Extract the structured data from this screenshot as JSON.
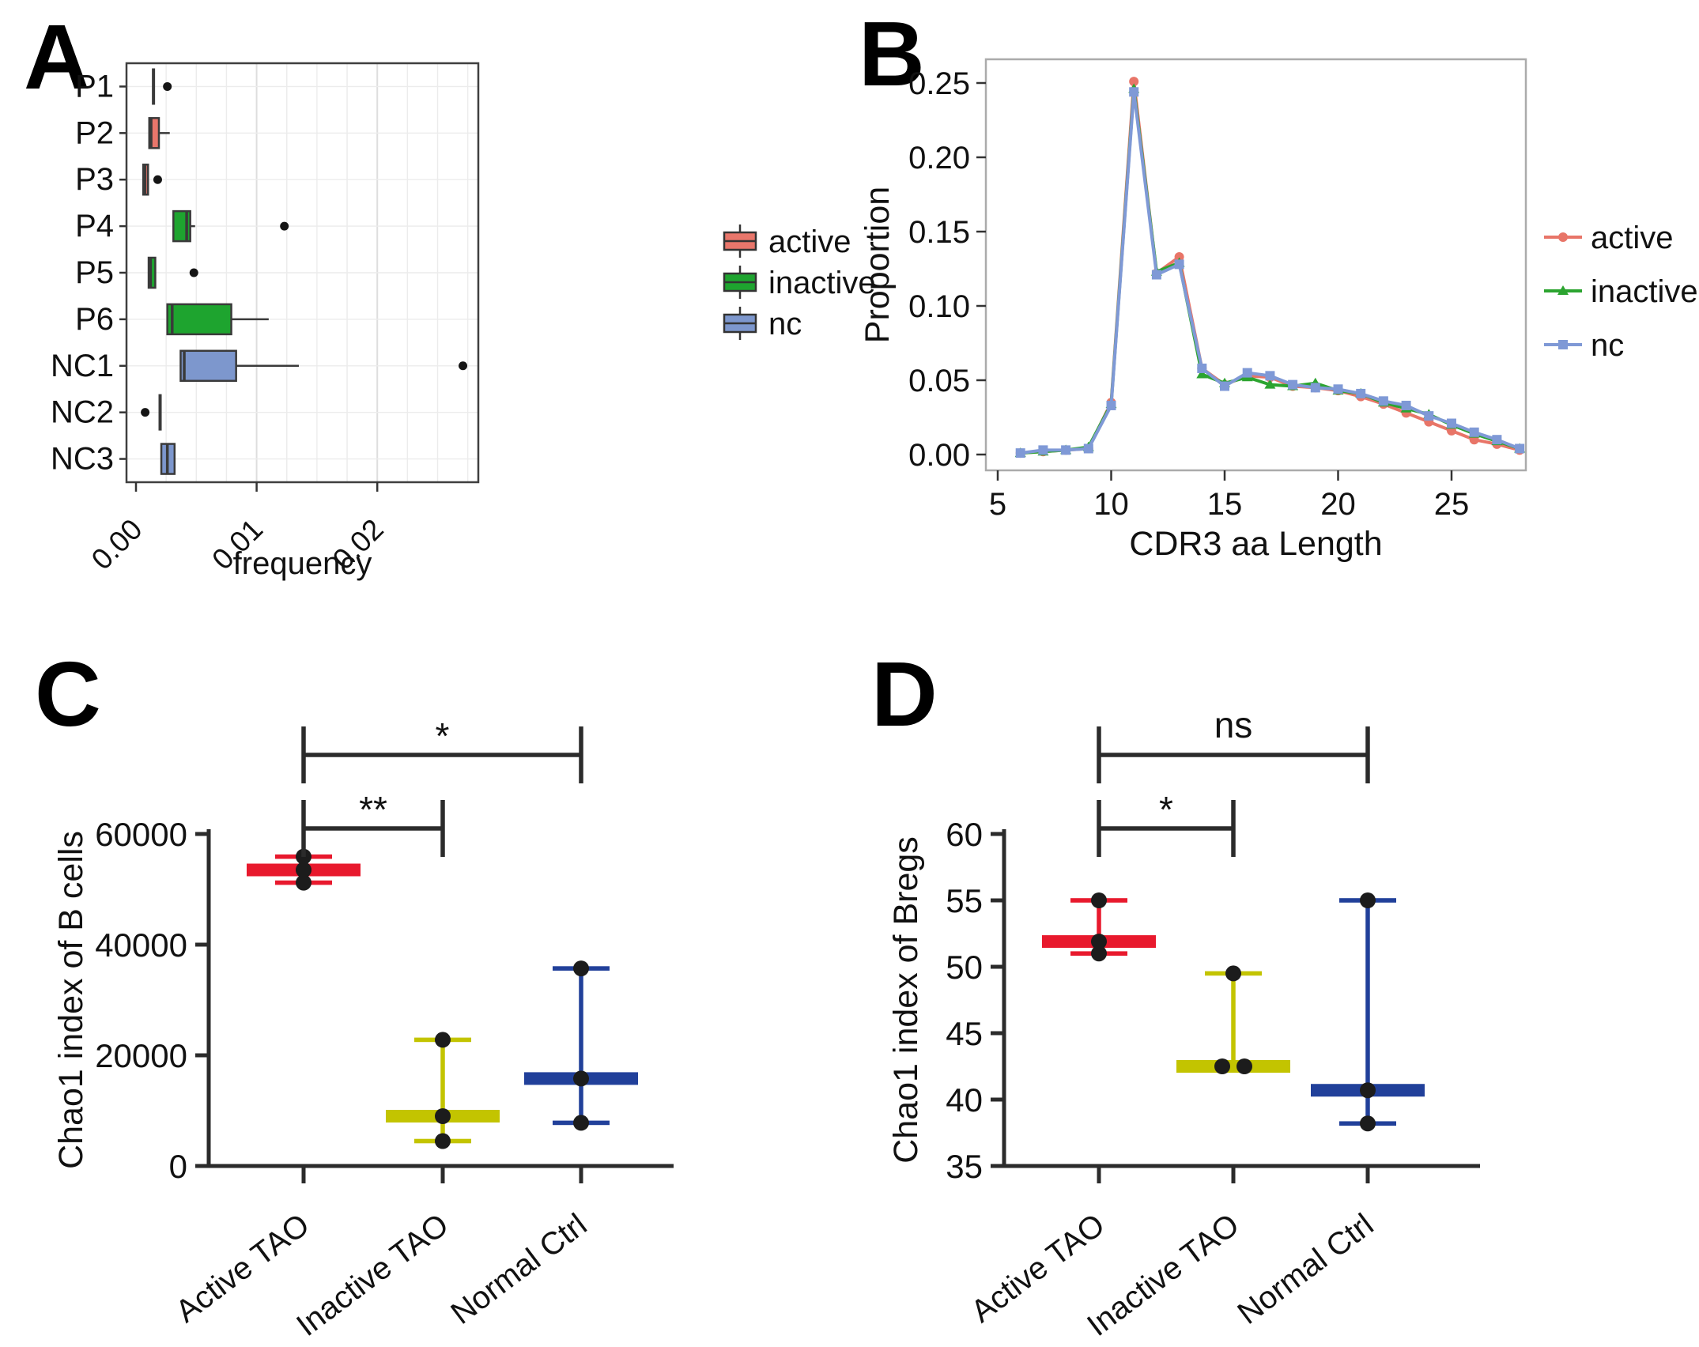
{
  "panels": {
    "A": {
      "letter": "A"
    },
    "B": {
      "letter": "B"
    },
    "C": {
      "letter": "C"
    },
    "D": {
      "letter": "D"
    }
  },
  "chart_data": [
    {
      "panel": "A",
      "type": "bar",
      "subtype": "horizontal_boxplot",
      "xlabel": "frequency",
      "xticks": [
        0,
        0.01,
        0.02
      ],
      "xtick_labels": [
        "0.00",
        "0.01",
        "0.02"
      ],
      "xlim": [
        0,
        0.0283
      ],
      "categories": [
        "P1",
        "P2",
        "P3",
        "P4",
        "P5",
        "P6",
        "NC1",
        "NC2",
        "NC3"
      ],
      "legend": {
        "position": "right",
        "items": [
          {
            "label": "active",
            "color": "#E8766B"
          },
          {
            "label": "inactive",
            "color": "#1EA42F"
          },
          {
            "label": "nc",
            "color": "#7D97CD"
          }
        ]
      },
      "boxes": [
        {
          "category": "P1",
          "group": "active",
          "q1": 0.0014,
          "median": 0.00145,
          "q3": 0.0015,
          "whisker_low": null,
          "whisker_high": null,
          "outliers": [
            0.0026
          ]
        },
        {
          "category": "P2",
          "group": "active",
          "q1": 0.0011,
          "median": 0.00125,
          "q3": 0.0019,
          "whisker_low": null,
          "whisker_high": 0.0028,
          "outliers": []
        },
        {
          "category": "P3",
          "group": "active",
          "q1": 0.0006,
          "median": 0.00075,
          "q3": 0.001,
          "whisker_low": null,
          "whisker_high": null,
          "outliers": [
            0.0018
          ]
        },
        {
          "category": "P4",
          "group": "inactive",
          "q1": 0.0031,
          "median": 0.0042,
          "q3": 0.0045,
          "whisker_low": null,
          "whisker_high": 0.0049,
          "outliers": [
            0.0123
          ]
        },
        {
          "category": "P5",
          "group": "inactive",
          "q1": 0.00105,
          "median": 0.0012,
          "q3": 0.0016,
          "whisker_low": null,
          "whisker_high": null,
          "outliers": [
            0.0048
          ]
        },
        {
          "category": "P6",
          "group": "inactive",
          "q1": 0.0026,
          "median": 0.003,
          "q3": 0.0079,
          "whisker_low": null,
          "whisker_high": 0.011,
          "outliers": []
        },
        {
          "category": "NC1",
          "group": "nc",
          "q1": 0.0037,
          "median": 0.004,
          "q3": 0.0083,
          "whisker_low": null,
          "whisker_high": 0.0135,
          "outliers": [
            0.0271
          ]
        },
        {
          "category": "NC2",
          "group": "nc",
          "q1": 0.00195,
          "median": 0.002,
          "q3": 0.00205,
          "whisker_low": null,
          "whisker_high": null,
          "outliers": [
            0.00076
          ]
        },
        {
          "category": "NC3",
          "group": "nc",
          "q1": 0.0021,
          "median": 0.0026,
          "q3": 0.0032,
          "whisker_low": null,
          "whisker_high": null,
          "outliers": []
        }
      ]
    },
    {
      "panel": "B",
      "type": "line",
      "xlabel": "CDR3 aa Length",
      "ylabel": "Proportion",
      "xticks": [
        5,
        10,
        15,
        20,
        25
      ],
      "yticks": [
        0,
        0.05,
        0.1,
        0.15,
        0.2,
        0.25
      ],
      "ytick_labels": [
        "0.00",
        "0.05",
        "0.10",
        "0.15",
        "0.20",
        "0.25"
      ],
      "xlim": [
        5,
        28.5
      ],
      "ylim": [
        0,
        0.26
      ],
      "x": [
        6,
        7,
        8,
        9,
        10,
        11,
        12,
        13,
        14,
        15,
        16,
        17,
        18,
        19,
        20,
        21,
        22,
        23,
        24,
        25,
        26,
        27,
        28
      ],
      "series": [
        {
          "name": "active",
          "color": "#E87568",
          "marker": "circle",
          "values": [
            0.001,
            0.002,
            0.003,
            0.004,
            0.035,
            0.251,
            0.122,
            0.133,
            0.058,
            0.047,
            0.053,
            0.052,
            0.046,
            0.045,
            0.043,
            0.039,
            0.034,
            0.028,
            0.022,
            0.016,
            0.01,
            0.007,
            0.003
          ]
        },
        {
          "name": "inactive",
          "color": "#2CA430",
          "marker": "triangle",
          "values": [
            0.001,
            0.002,
            0.003,
            0.005,
            0.034,
            0.246,
            0.123,
            0.129,
            0.054,
            0.048,
            0.052,
            0.047,
            0.046,
            0.048,
            0.043,
            0.041,
            0.035,
            0.031,
            0.027,
            0.02,
            0.014,
            0.009,
            0.004
          ]
        },
        {
          "name": "nc",
          "color": "#7F99D6",
          "marker": "square",
          "values": [
            0.001,
            0.003,
            0.003,
            0.004,
            0.033,
            0.244,
            0.121,
            0.128,
            0.058,
            0.046,
            0.055,
            0.053,
            0.047,
            0.045,
            0.044,
            0.041,
            0.036,
            0.033,
            0.026,
            0.021,
            0.015,
            0.01,
            0.004
          ]
        }
      ],
      "legend": {
        "position": "right",
        "items": [
          {
            "label": "active",
            "color": "#E87568",
            "marker": "circle"
          },
          {
            "label": "inactive",
            "color": "#2CA430",
            "marker": "triangle"
          },
          {
            "label": "nc",
            "color": "#7F99D6",
            "marker": "square"
          }
        ]
      }
    },
    {
      "panel": "C",
      "type": "scatter",
      "subtype": "minmax_median",
      "ylabel": "Chao1 index of B cells",
      "yticks": [
        0,
        20000,
        40000,
        60000
      ],
      "ytick_labels": [
        "0",
        "20000",
        "40000",
        "60000"
      ],
      "ylim": [
        0,
        60000
      ],
      "categories": [
        "Active TAO",
        "Inactive TAO",
        "Normal Ctrl"
      ],
      "groups": [
        {
          "label": "Active TAO",
          "color": "#E8192D",
          "max": 55900,
          "median": 53500,
          "min": 51200,
          "show_min_cap": true,
          "dots": [
            {
              "v": 55900,
              "dx": 0
            },
            {
              "v": 53500,
              "dx": 0
            },
            {
              "v": 51200,
              "dx": 0
            }
          ]
        },
        {
          "label": "Inactive TAO",
          "color": "#C3C400",
          "max": 22800,
          "median": 9000,
          "min": 4500,
          "show_min_cap": true,
          "dots": [
            {
              "v": 22800,
              "dx": 0
            },
            {
              "v": 9000,
              "dx": 0
            },
            {
              "v": 4500,
              "dx": 0
            }
          ]
        },
        {
          "label": "Normal Ctrl",
          "color": "#21409A",
          "max": 35700,
          "median": 15800,
          "min": 7800,
          "show_min_cap": true,
          "dots": [
            {
              "v": 35700,
              "dx": 0
            },
            {
              "v": 15800,
              "dx": 0
            },
            {
              "v": 7800,
              "dx": 0
            }
          ]
        }
      ],
      "significance": [
        {
          "between": [
            "Active TAO",
            "Inactive TAO"
          ],
          "label": "**"
        },
        {
          "between": [
            "Active TAO",
            "Normal Ctrl"
          ],
          "label": "*"
        }
      ]
    },
    {
      "panel": "D",
      "type": "scatter",
      "subtype": "minmax_median",
      "ylabel": "Chao1 index of Bregs",
      "yticks": [
        35,
        40,
        45,
        50,
        55,
        60
      ],
      "ytick_labels": [
        "35",
        "40",
        "45",
        "50",
        "55",
        "60"
      ],
      "ylim": [
        35,
        60
      ],
      "categories": [
        "Active TAO",
        "Inactive TAO",
        "Normal Ctrl"
      ],
      "groups": [
        {
          "label": "Active TAO",
          "color": "#E8192D",
          "max": 55,
          "median": 51.9,
          "min": 51,
          "show_min_cap": true,
          "dots": [
            {
              "v": 55,
              "dx": 0
            },
            {
              "v": 51.9,
              "dx": 0
            },
            {
              "v": 51,
              "dx": 0
            }
          ]
        },
        {
          "label": "Inactive TAO",
          "color": "#C3C400",
          "max": 49.5,
          "median": 42.5,
          "min": 42.5,
          "show_min_cap": false,
          "dots": [
            {
              "v": 49.5,
              "dx": 0
            },
            {
              "v": 42.5,
              "dx": -14
            },
            {
              "v": 42.5,
              "dx": 14
            }
          ]
        },
        {
          "label": "Normal Ctrl",
          "color": "#21409A",
          "max": 55,
          "median": 40.7,
          "min": 38.2,
          "show_min_cap": true,
          "dots": [
            {
              "v": 55,
              "dx": 0
            },
            {
              "v": 40.7,
              "dx": 0
            },
            {
              "v": 38.2,
              "dx": 0
            }
          ]
        }
      ],
      "significance": [
        {
          "between": [
            "Active TAO",
            "Inactive TAO"
          ],
          "label": "*"
        },
        {
          "between": [
            "Active TAO",
            "Normal Ctrl"
          ],
          "label": "ns"
        }
      ]
    }
  ]
}
